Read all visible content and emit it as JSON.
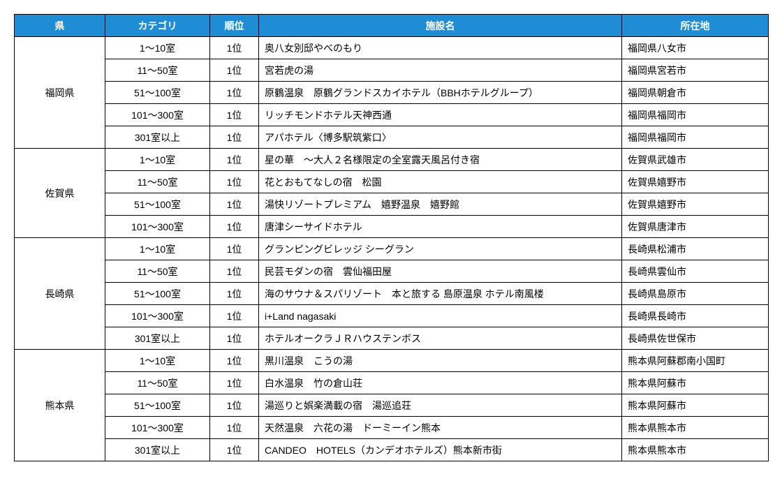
{
  "header_bg": "#1e8dd6",
  "header_fg": "#ffffff",
  "border_color": "#000000",
  "columns": [
    "県",
    "カテゴリ",
    "順位",
    "施設名",
    "所在地"
  ],
  "groups": [
    {
      "pref": "福岡県",
      "rows": [
        {
          "cat": "1～10室",
          "rank": "1位",
          "name": "奥八女別邸やべのもり",
          "loc": "福岡県八女市"
        },
        {
          "cat": "11～50室",
          "rank": "1位",
          "name": "宮若虎の湯",
          "loc": "福岡県宮若市"
        },
        {
          "cat": "51～100室",
          "rank": "1位",
          "name": "原鶴温泉　原鶴グランドスカイホテル（BBHホテルグループ）",
          "loc": "福岡県朝倉市"
        },
        {
          "cat": "101～300室",
          "rank": "1位",
          "name": "リッチモンドホテル天神西通",
          "loc": "福岡県福岡市"
        },
        {
          "cat": "301室以上",
          "rank": "1位",
          "name": "アパホテル〈博多駅筑紫口〉",
          "loc": "福岡県福岡市"
        }
      ]
    },
    {
      "pref": "佐賀県",
      "rows": [
        {
          "cat": "1～10室",
          "rank": "1位",
          "name": "星の華　～大人２名様限定の全室露天風呂付き宿",
          "loc": "佐賀県武雄市"
        },
        {
          "cat": "11～50室",
          "rank": "1位",
          "name": "花とおもてなしの宿　松園",
          "loc": "佐賀県嬉野市"
        },
        {
          "cat": "51～100室",
          "rank": "1位",
          "name": "湯快リゾートプレミアム　嬉野温泉　嬉野館",
          "loc": "佐賀県嬉野市"
        },
        {
          "cat": "101～300室",
          "rank": "1位",
          "name": "唐津シーサイドホテル",
          "loc": "佐賀県唐津市"
        }
      ]
    },
    {
      "pref": "長崎県",
      "rows": [
        {
          "cat": "1～10室",
          "rank": "1位",
          "name": "グランピングビレッジ シーグラン",
          "loc": "長崎県松浦市"
        },
        {
          "cat": "11～50室",
          "rank": "1位",
          "name": "民芸モダンの宿　雲仙福田屋",
          "loc": "長崎県雲仙市"
        },
        {
          "cat": "51～100室",
          "rank": "1位",
          "name": "海のサウナ＆スパリゾート　本と旅する 島原温泉 ホテル南風楼",
          "loc": "長崎県島原市"
        },
        {
          "cat": "101～300室",
          "rank": "1位",
          "name": "i+Land nagasaki",
          "loc": "長崎県長崎市"
        },
        {
          "cat": "301室以上",
          "rank": "1位",
          "name": "ホテルオークラＪＲハウステンボス",
          "loc": "長崎県佐世保市"
        }
      ]
    },
    {
      "pref": "熊本県",
      "rows": [
        {
          "cat": "1～10室",
          "rank": "1位",
          "name": "黒川温泉　こうの湯",
          "loc": "熊本県阿蘇郡南小国町"
        },
        {
          "cat": "11～50室",
          "rank": "1位",
          "name": "白水温泉　竹の倉山荘",
          "loc": "熊本県阿蘇市"
        },
        {
          "cat": "51～100室",
          "rank": "1位",
          "name": "湯巡りと娯楽満載の宿　湯巡追荘",
          "loc": "熊本県阿蘇市"
        },
        {
          "cat": "101～300室",
          "rank": "1位",
          "name": "天然温泉　六花の湯　ドーミーイン熊本",
          "loc": "熊本県熊本市"
        },
        {
          "cat": "301室以上",
          "rank": "1位",
          "name": "CANDEO　HOTELS（カンデオホテルズ）熊本新市街",
          "loc": "熊本県熊本市"
        }
      ]
    }
  ]
}
